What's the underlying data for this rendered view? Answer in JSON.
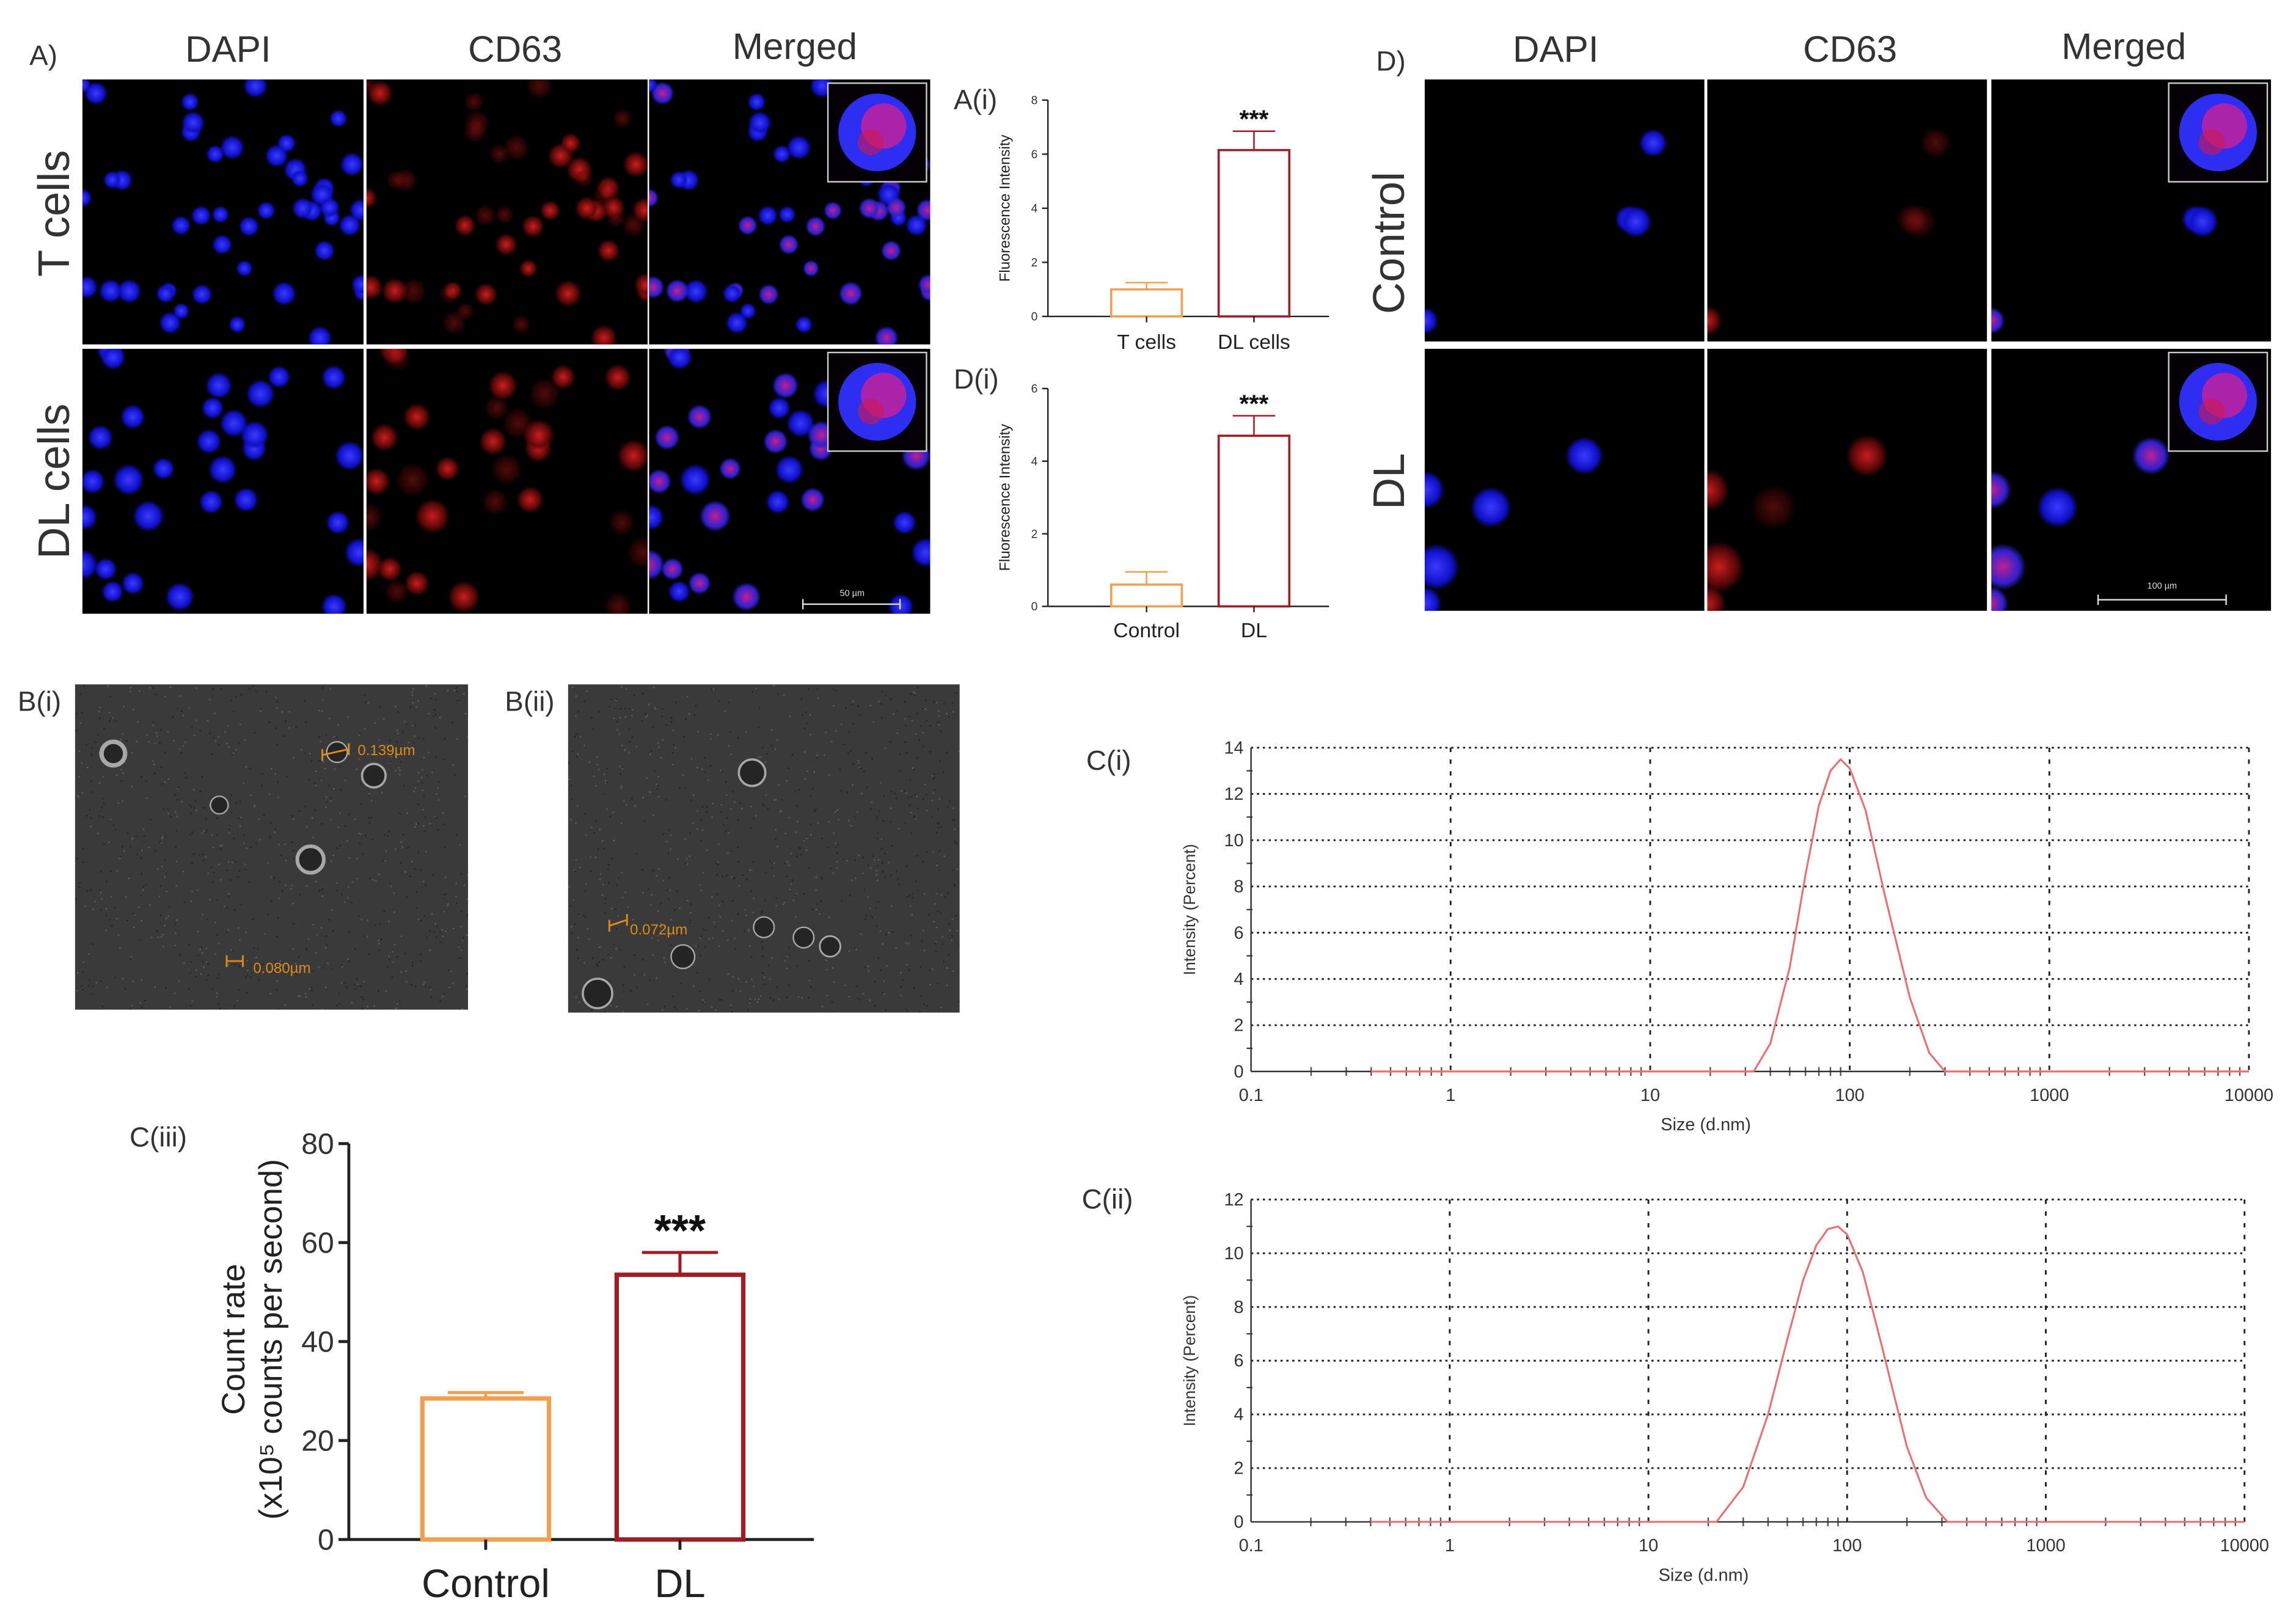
{
  "panels": {
    "A": {
      "label": "A)",
      "headers": [
        "DAPI",
        "CD63",
        "Merged"
      ],
      "rows": [
        "T cells",
        "DL cells"
      ],
      "scale_bar": "50 µm"
    },
    "D": {
      "label": "D)",
      "headers": [
        "DAPI",
        "CD63",
        "Merged"
      ],
      "rows": [
        "Control",
        "DL"
      ],
      "scale_bar": "100 µm"
    },
    "Ai": {
      "label": "A(i)"
    },
    "Di": {
      "label": "D(i)"
    },
    "Bi": {
      "label": "B(i)",
      "measurements": [
        "0.139µm",
        "0.080µm"
      ]
    },
    "Bii": {
      "label": "B(ii)",
      "measurements": [
        "0.072µm"
      ]
    },
    "Ci": {
      "label": "C(i)"
    },
    "Cii": {
      "label": "C(ii)"
    },
    "Ciii": {
      "label": "C(iii)"
    }
  },
  "colors": {
    "control": "#f0a050",
    "treated": "#a01c24",
    "dls_line": "#e87070",
    "dapi": "#2020ff",
    "cd63": "#d01818"
  },
  "chart_data": [
    {
      "id": "A(i)",
      "type": "bar",
      "categories": [
        "T cells",
        "DL cells"
      ],
      "values": [
        1.0,
        6.15
      ],
      "errors": [
        0.25,
        0.7
      ],
      "significance": [
        "",
        "***"
      ],
      "ylabel": [
        "Fluorescence Intensity"
      ],
      "ylim": [
        0,
        8
      ],
      "yticks": [
        "0",
        "2",
        "4",
        "6",
        "8"
      ],
      "colors": [
        "#f0a050",
        "#a01c24"
      ]
    },
    {
      "id": "D(i)",
      "type": "bar",
      "categories": [
        "Control",
        "DL"
      ],
      "values": [
        0.6,
        4.7
      ],
      "errors": [
        0.35,
        0.55
      ],
      "significance": [
        "",
        "***"
      ],
      "ylabel": [
        "Fluorescence Intensity"
      ],
      "ylim": [
        0,
        6
      ],
      "yticks": [
        "0",
        "2",
        "4",
        "6"
      ],
      "colors": [
        "#f0a050",
        "#a01c24"
      ]
    },
    {
      "id": "C(iii)",
      "type": "bar",
      "categories": [
        "Control",
        "DL"
      ],
      "values": [
        28.5,
        53.5
      ],
      "errors": [
        1.2,
        4.5
      ],
      "significance": [
        "",
        "***"
      ],
      "ylabel": [
        "Count rate",
        "(x10⁵ counts per second)"
      ],
      "ylim": [
        0,
        80
      ],
      "yticks": [
        "0",
        "20",
        "40",
        "60",
        "80"
      ],
      "colors": [
        "#f0a050",
        "#a01c24"
      ]
    },
    {
      "id": "C(i)",
      "type": "line",
      "xscale": "log",
      "xlabel": "Size (d.nm)",
      "ylabel": "Intensity (Percent)",
      "xlim": [
        0.1,
        10000
      ],
      "xticks": [
        "0.1",
        "1",
        "10",
        "100",
        "1000",
        "10000"
      ],
      "ylim": [
        0,
        14
      ],
      "yticks": [
        "0",
        "2",
        "4",
        "6",
        "8",
        "10",
        "12",
        "14"
      ],
      "grid": true,
      "x": [
        0.4,
        33,
        40,
        50,
        60,
        70,
        80,
        90,
        100,
        120,
        150,
        200,
        250,
        300,
        10000
      ],
      "y": [
        0,
        0,
        1.2,
        4.5,
        8.5,
        11.5,
        13.0,
        13.5,
        13.1,
        11.3,
        7.6,
        3.2,
        0.8,
        0,
        0
      ]
    },
    {
      "id": "C(ii)",
      "type": "line",
      "xscale": "log",
      "xlabel": "Size (d.nm)",
      "ylabel": "Intensity (Percent)",
      "xlim": [
        0.1,
        10000
      ],
      "xticks": [
        "0.1",
        "1",
        "10",
        "100",
        "1000",
        "10000"
      ],
      "ylim": [
        0,
        12
      ],
      "yticks": [
        "0",
        "2",
        "4",
        "6",
        "8",
        "10",
        "12"
      ],
      "grid": true,
      "x": [
        0.4,
        22,
        30,
        40,
        50,
        60,
        70,
        80,
        90,
        100,
        120,
        150,
        200,
        250,
        320,
        10000
      ],
      "y": [
        0,
        0,
        1.3,
        4.0,
        6.8,
        9.0,
        10.3,
        10.9,
        11.0,
        10.7,
        9.3,
        6.5,
        2.8,
        0.9,
        0,
        0
      ]
    }
  ]
}
